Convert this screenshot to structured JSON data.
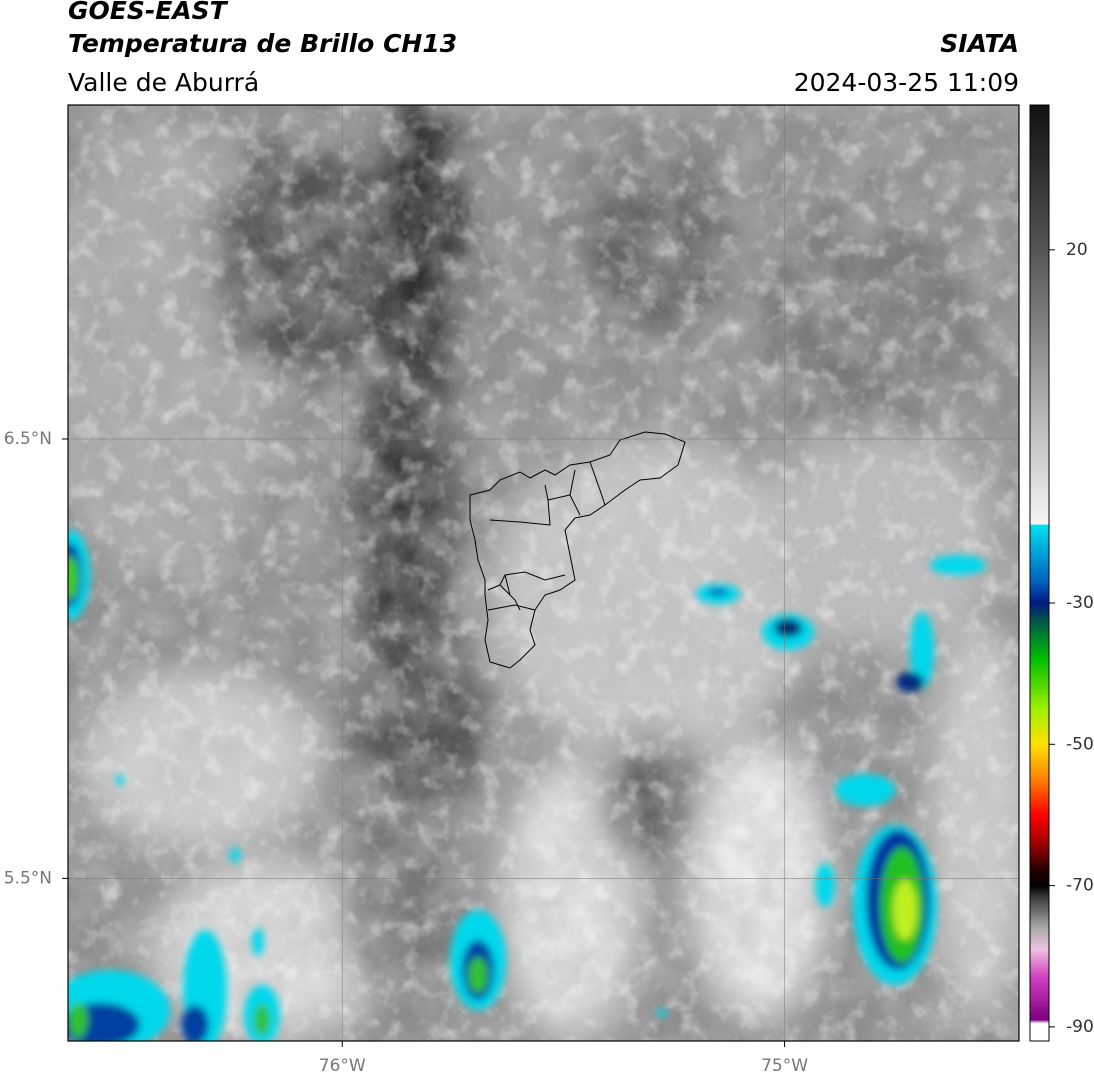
{
  "header": {
    "title": "GOES-EAST",
    "subtitle": "Temperatura de Brillo CH13",
    "region": "Valle de Aburrá",
    "source": "SIATA",
    "datetime": "2024-03-25 11:09"
  },
  "map": {
    "xlim": [
      -76.62,
      -74.47
    ],
    "ylim": [
      5.13,
      7.26
    ],
    "xticks": [
      {
        "value": -76,
        "label": "76°W"
      },
      {
        "value": -75,
        "label": "75°W"
      }
    ],
    "yticks": [
      {
        "value": 6.5,
        "label": "6.5°N"
      },
      {
        "value": 5.5,
        "label": "5.5°N"
      }
    ],
    "grid": true
  },
  "colorbar": {
    "lim": [
      -92,
      40.5
    ],
    "ticks": [
      20,
      -30,
      -50,
      -70,
      -90
    ],
    "stops": [
      {
        "value": 40.5,
        "color": "#111111"
      },
      {
        "value": 20,
        "color": "#555555"
      },
      {
        "value": 0,
        "color": "#a8a8a8"
      },
      {
        "value": -18.8,
        "color": "#f5f5f5"
      },
      {
        "value": -19,
        "color": "#00e0f0"
      },
      {
        "value": -27,
        "color": "#0060c0"
      },
      {
        "value": -30,
        "color": "#001a80"
      },
      {
        "value": -33,
        "color": "#006040"
      },
      {
        "value": -38,
        "color": "#00c000"
      },
      {
        "value": -45,
        "color": "#a0f000"
      },
      {
        "value": -50,
        "color": "#ffe000"
      },
      {
        "value": -55,
        "color": "#ff8000"
      },
      {
        "value": -60,
        "color": "#ff0000"
      },
      {
        "value": -64,
        "color": "#a00000"
      },
      {
        "value": -68,
        "color": "#200000"
      },
      {
        "value": -70,
        "color": "#000000"
      },
      {
        "value": -72,
        "color": "#444444"
      },
      {
        "value": -76,
        "color": "#aaaaaa"
      },
      {
        "value": -79,
        "color": "#f0c0e0"
      },
      {
        "value": -83,
        "color": "#d040c0"
      },
      {
        "value": -89,
        "color": "#800080"
      },
      {
        "value": -89.5,
        "color": "#ffffff"
      },
      {
        "value": -92,
        "color": "#ffffff"
      }
    ]
  }
}
